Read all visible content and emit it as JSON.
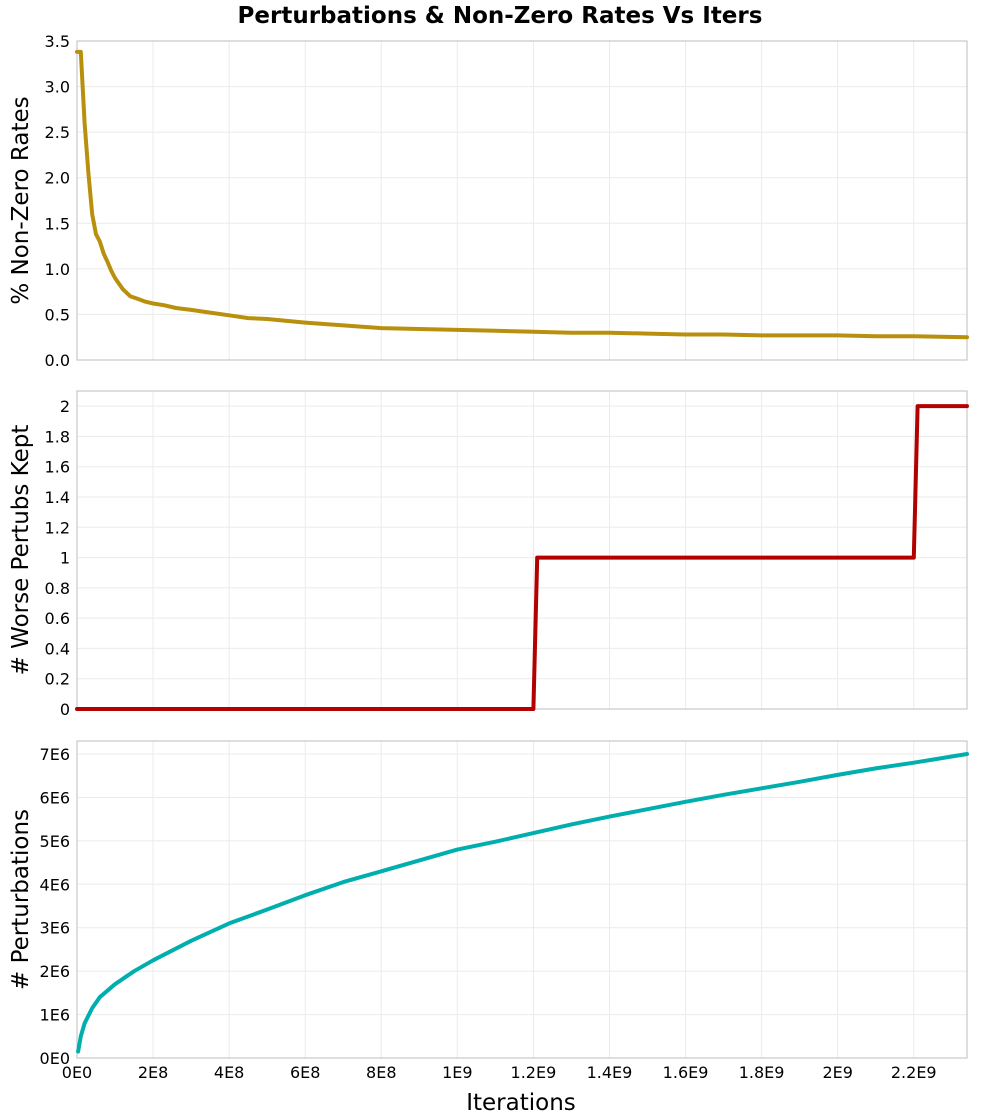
{
  "chart_data": {
    "type": "line",
    "title": "Perturbations & Non-Zero Rates Vs Iters",
    "xlabel": "Iterations",
    "xlim": [
      0,
      2340000000
    ],
    "x_ticks": [
      0,
      200000000,
      400000000,
      600000000,
      800000000,
      1000000000,
      1200000000,
      1400000000,
      1600000000,
      1800000000,
      2000000000,
      2200000000
    ],
    "x_tick_labels": [
      "0E0",
      "2E8",
      "4E8",
      "6E8",
      "8E8",
      "1E9",
      "1.2E9",
      "1.4E9",
      "1.6E9",
      "1.8E9",
      "2E9",
      "2.2E9"
    ],
    "panels": [
      {
        "ylabel": "% Non-Zero Rates",
        "ylim": [
          0,
          3.5
        ],
        "y_ticks": [
          0,
          0.5,
          1.0,
          1.5,
          2.0,
          2.5,
          3.0,
          3.5
        ],
        "y_tick_labels": [
          "0.0",
          "0.5",
          "1.0",
          "1.5",
          "2.0",
          "2.5",
          "3.0",
          "3.5"
        ],
        "series": [
          {
            "color": "#b8900e",
            "x": [
              0,
              10000000,
              20000000,
              30000000,
              40000000,
              50000000,
              60000000,
              70000000,
              80000000,
              90000000,
              100000000,
              120000000,
              140000000,
              160000000,
              180000000,
              200000000,
              230000000,
              260000000,
              300000000,
              350000000,
              400000000,
              450000000,
              500000000,
              600000000,
              700000000,
              800000000,
              900000000,
              1000000000,
              1100000000,
              1200000000,
              1300000000,
              1400000000,
              1500000000,
              1600000000,
              1700000000,
              1800000000,
              1900000000,
              2000000000,
              2100000000,
              2200000000,
              2340000000
            ],
            "y": [
              3.38,
              3.38,
              2.6,
              2.05,
              1.6,
              1.38,
              1.3,
              1.17,
              1.08,
              0.98,
              0.9,
              0.78,
              0.7,
              0.67,
              0.64,
              0.62,
              0.6,
              0.57,
              0.55,
              0.52,
              0.49,
              0.46,
              0.45,
              0.41,
              0.38,
              0.35,
              0.34,
              0.33,
              0.32,
              0.31,
              0.3,
              0.3,
              0.29,
              0.28,
              0.28,
              0.27,
              0.27,
              0.27,
              0.26,
              0.26,
              0.25
            ]
          }
        ]
      },
      {
        "ylabel": "# Worse Pertubs Kept",
        "ylim": [
          0,
          2.1
        ],
        "y_ticks": [
          0,
          0.2,
          0.4,
          0.6,
          0.8,
          1,
          1.2,
          1.4,
          1.6,
          1.8,
          2
        ],
        "y_tick_labels": [
          "0",
          "0.2",
          "0.4",
          "0.6",
          "0.8",
          "1",
          "1.2",
          "1.4",
          "1.6",
          "1.8",
          "2"
        ],
        "series": [
          {
            "color": "#b30000",
            "x": [
              0,
              1200000000,
              1210000000,
              2200000000,
              2210000000,
              2340000000
            ],
            "y": [
              0,
              0,
              1,
              1,
              2,
              2
            ]
          }
        ]
      },
      {
        "ylabel": "# Perturbations",
        "ylim": [
          0,
          7300000
        ],
        "y_ticks": [
          0,
          1000000,
          2000000,
          3000000,
          4000000,
          5000000,
          6000000,
          7000000
        ],
        "y_tick_labels": [
          "0E0",
          "1E6",
          "2E6",
          "3E6",
          "4E6",
          "5E6",
          "6E6",
          "7E6"
        ],
        "series": [
          {
            "color": "#00aeae",
            "x": [
              3000000,
              10000000,
              20000000,
              40000000,
              60000000,
              100000000,
              150000000,
              200000000,
              300000000,
              400000000,
              500000000,
              600000000,
              700000000,
              800000000,
              900000000,
              1000000000,
              1100000000,
              1200000000,
              1300000000,
              1400000000,
              1500000000,
              1600000000,
              1700000000,
              1800000000,
              1900000000,
              2000000000,
              2100000000,
              2200000000,
              2340000000
            ],
            "y": [
              150000,
              500000,
              800000,
              1150000,
              1400000,
              1700000,
              2000000,
              2250000,
              2700000,
              3100000,
              3420000,
              3750000,
              4050000,
              4300000,
              4550000,
              4800000,
              4980000,
              5180000,
              5380000,
              5560000,
              5730000,
              5900000,
              6060000,
              6210000,
              6360000,
              6520000,
              6670000,
              6800000,
              7000000
            ]
          }
        ]
      }
    ]
  }
}
